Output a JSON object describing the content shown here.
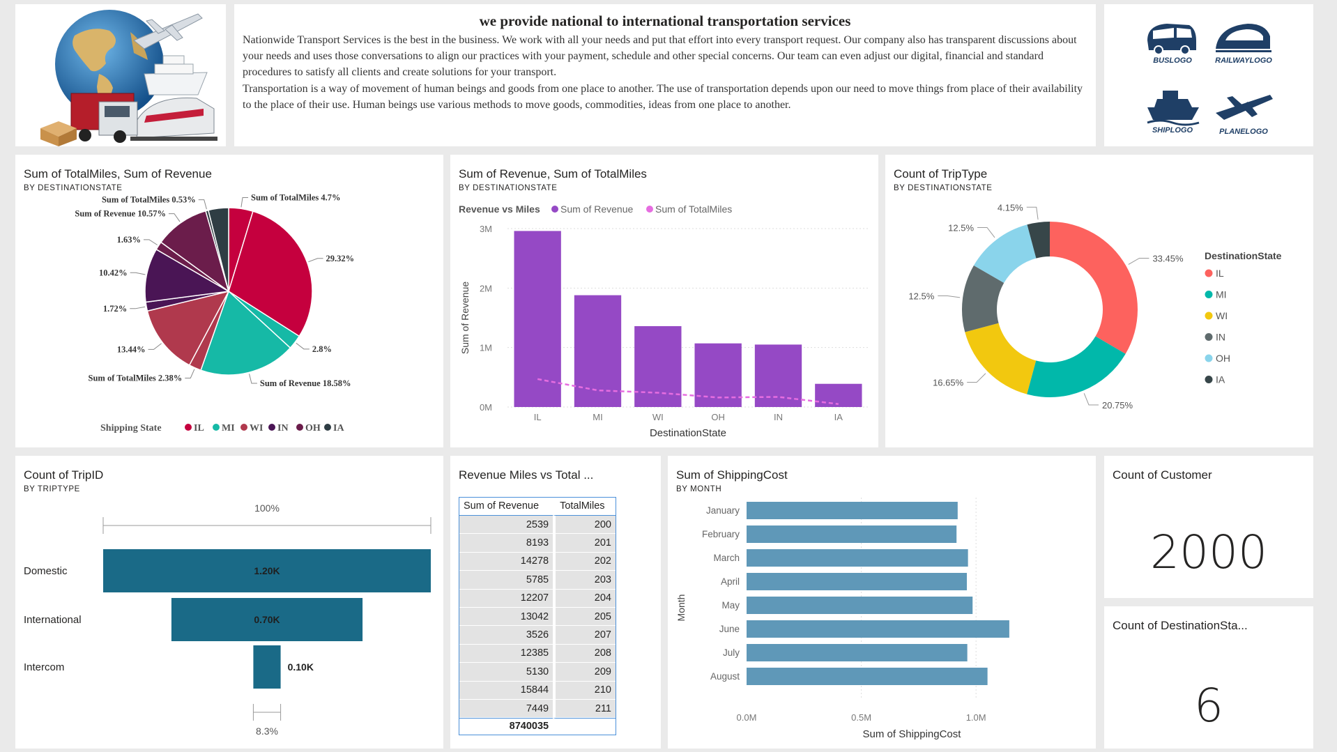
{
  "header": {
    "title": "we provide national to international transportation services",
    "paragraph1": "Nationwide Transport Services is the best in the business. We work with all your needs and put that effort into every transport request. Our company also has transparent discussions about your needs and uses those conversations to align our practices with your payment, schedule and other special concerns. Our team can even adjust our digital, financial and standard procedures to satisfy all clients and create solutions for your transport.",
    "paragraph2": "Transportation is a way of movement of human beings and goods from one place to another. The use of transportation depends upon our need to move things from place of their availability to the place of their use. Human beings use various methods to move goods, commodities, ideas from one place to another."
  },
  "logos": [
    {
      "icon": "bus-logo-icon",
      "label": "BUSLOGO"
    },
    {
      "icon": "railway-logo-icon",
      "label": "RAILWAYLOGO"
    },
    {
      "icon": "ship-logo-icon",
      "label": "SHIPLOGO"
    },
    {
      "icon": "plane-logo-icon",
      "label": "PLANELOGO"
    }
  ],
  "colors": {
    "IL": "#c5003e",
    "MI": "#16b9a6",
    "WI": "#b0394d",
    "IN": "#4a1555",
    "OH": "#6b1d4b",
    "IA": "#2f3d44",
    "donut_IL": "#fd625e",
    "donut_MI": "#01b8aa",
    "donut_WI": "#f2c80f",
    "donut_IN": "#5f6b6d",
    "donut_OH": "#8ad4eb",
    "donut_IA": "#374649",
    "bar": "#9549c5",
    "line": "#e66de0",
    "funnel": "#1a6a87",
    "hbar": "#5f98b8"
  },
  "chart_data": [
    {
      "id": "pie",
      "type": "pie",
      "title": "Sum of TotalMiles, Sum of Revenue",
      "subtitle": "BY DESTINATIONSTATE",
      "legend_title": "Shipping State",
      "legend": [
        "IL",
        "MI",
        "WI",
        "IN",
        "OH",
        "IA"
      ],
      "slices": [
        {
          "state": "IL",
          "measure": "TotalMiles",
          "value": 4.7,
          "label": "Sum of TotalMiles 4.7%"
        },
        {
          "state": "IL",
          "measure": "Revenue",
          "value": 29.32,
          "label": "29.32%"
        },
        {
          "state": "MI",
          "measure": "TotalMiles",
          "value": 2.8,
          "label": "2.8%"
        },
        {
          "state": "MI",
          "measure": "Revenue",
          "value": 18.58,
          "label": "Sum of Revenue 18.58%"
        },
        {
          "state": "WI",
          "measure": "TotalMiles",
          "value": 2.38,
          "label": "Sum of TotalMiles 2.38%"
        },
        {
          "state": "WI",
          "measure": "Revenue",
          "value": 13.44,
          "label": "13.44%"
        },
        {
          "state": "IN",
          "measure": "TotalMiles",
          "value": 1.72,
          "label": "1.72%"
        },
        {
          "state": "IN",
          "measure": "Revenue",
          "value": 10.42,
          "label": "10.42%"
        },
        {
          "state": "OH",
          "measure": "TotalMiles",
          "value": 1.63,
          "label": "1.63%"
        },
        {
          "state": "OH",
          "measure": "Revenue",
          "value": 10.57,
          "label": "Sum of Revenue 10.57%"
        },
        {
          "state": "IA",
          "measure": "TotalMiles",
          "value": 0.53,
          "label": "Sum of TotalMiles 0.53%"
        },
        {
          "state": "IA",
          "measure": "Revenue",
          "value": 3.91,
          "label": ""
        }
      ]
    },
    {
      "id": "combo",
      "type": "bar",
      "title": "Sum of Revenue, Sum of TotalMiles",
      "subtitle": "BY DESTINATIONSTATE",
      "legend_title": "Revenue vs Miles",
      "categories": [
        "IL",
        "MI",
        "WI",
        "OH",
        "IN",
        "IA"
      ],
      "series": [
        {
          "name": "Sum of Revenue",
          "values": [
            2960000,
            1880000,
            1360000,
            1070000,
            1050000,
            390000
          ]
        },
        {
          "name": "Sum of TotalMiles",
          "values": [
            470000,
            280000,
            240000,
            160000,
            170000,
            50000
          ]
        }
      ],
      "xlabel": "DestinationState",
      "ylabel": "Sum of Revenue",
      "yticks": [
        "0M",
        "1M",
        "2M",
        "3M"
      ],
      "ylim": [
        0,
        3000000
      ]
    },
    {
      "id": "donut",
      "type": "pie",
      "title": "Count of TripType",
      "subtitle": "BY DESTINATIONSTATE",
      "legend_title": "DestinationState",
      "categories": [
        "IL",
        "MI",
        "WI",
        "IN",
        "OH",
        "IA"
      ],
      "values": [
        33.45,
        20.75,
        16.65,
        12.5,
        12.5,
        4.15
      ],
      "labels": [
        "33.45%",
        "20.75%",
        "16.65%",
        "12.5%",
        "12.5%",
        "4.15%"
      ]
    },
    {
      "id": "funnel",
      "type": "bar",
      "title": "Count of TripID",
      "subtitle": "BY TRIPTYPE",
      "categories": [
        "Domestic",
        "International",
        "Intercom"
      ],
      "values": [
        1200,
        700,
        100
      ],
      "value_labels": [
        "1.20K",
        "0.70K",
        "0.10K"
      ],
      "top_pct": "100%",
      "bottom_pct": "8.3%"
    },
    {
      "id": "table",
      "type": "table",
      "title": "Revenue Miles vs Total ...",
      "columns": [
        "Sum of Revenue",
        "TotalMiles"
      ],
      "rows": [
        [
          "2539",
          "200"
        ],
        [
          "8193",
          "201"
        ],
        [
          "14278",
          "202"
        ],
        [
          "5785",
          "203"
        ],
        [
          "12207",
          "204"
        ],
        [
          "13042",
          "205"
        ],
        [
          "3526",
          "207"
        ],
        [
          "12385",
          "208"
        ],
        [
          "5130",
          "209"
        ],
        [
          "15844",
          "210"
        ],
        [
          "7449",
          "211"
        ]
      ],
      "total": "8740035"
    },
    {
      "id": "hbar",
      "type": "bar",
      "title": "Sum of ShippingCost",
      "subtitle": "BY MONTH",
      "categories": [
        "January",
        "February",
        "March",
        "April",
        "May",
        "June",
        "July",
        "August"
      ],
      "values": [
        920000,
        915000,
        965000,
        960000,
        985000,
        1145000,
        962000,
        1050000
      ],
      "xlabel": "Sum of ShippingCost",
      "ylabel": "Month",
      "xticks": [
        "0.0M",
        "0.5M",
        "1.0M"
      ],
      "xlim": [
        0,
        1200000
      ]
    }
  ],
  "kpis": [
    {
      "title": "Count of Customer",
      "value": "2000"
    },
    {
      "title": "Count of DestinationSta...",
      "value": "6"
    }
  ]
}
